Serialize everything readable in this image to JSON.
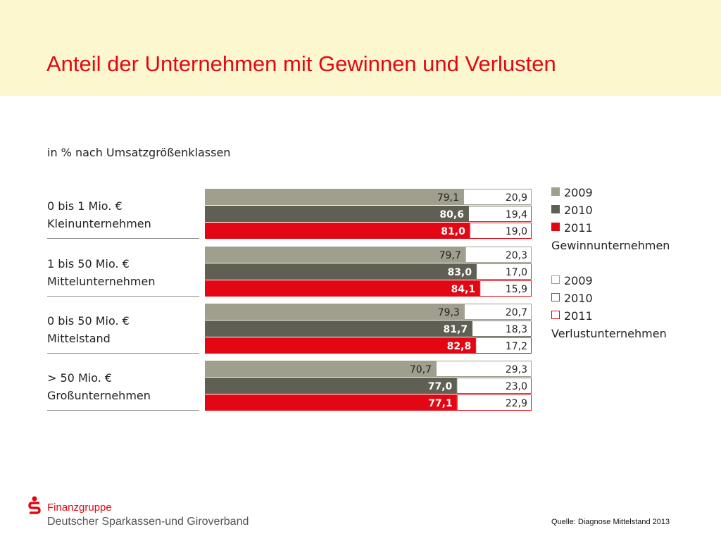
{
  "title": "Anteil der Unternehmen mit Gewinnen und Verlusten",
  "chart_data": {
    "type": "bar",
    "orientation": "horizontal",
    "stacked": true,
    "subtitle": "in % nach Umsatzgrößenklassen",
    "xlim": [
      0,
      100
    ],
    "categories": [
      [
        "0 bis 1 Mio. €",
        "Kleinunternehmen"
      ],
      [
        "1 bis 50 Mio. €",
        "Mittelunternehmen"
      ],
      [
        "0 bis 50 Mio. €",
        "Mittelstand"
      ],
      [
        "> 50 Mio. €",
        "Großunternehmen"
      ]
    ],
    "years": [
      "2009",
      "2010",
      "2011"
    ],
    "gewinn": [
      [
        "79,1",
        "80,6",
        "81,0"
      ],
      [
        "79,7",
        "83,0",
        "84,1"
      ],
      [
        "79,3",
        "81,7",
        "82,8"
      ],
      [
        "70,7",
        "77,0",
        "77,1"
      ]
    ],
    "verlust": [
      [
        "20,9",
        "19,4",
        "19,0"
      ],
      [
        "20,3",
        "17,0",
        "15,9"
      ],
      [
        "20,7",
        "18,3",
        "17,2"
      ],
      [
        "29,3",
        "23,0",
        "22,9"
      ]
    ],
    "colors": {
      "2009": "#a09f8d",
      "2010": "#5f5f53",
      "2011": "#e30613",
      "label_2009": "#222222",
      "label_on_dark": "#ffffff"
    },
    "legend": {
      "gewinn": {
        "items": [
          "2009",
          "2010",
          "2011"
        ],
        "caption": "Gewinnunternehmen"
      },
      "verlust": {
        "items": [
          "2009",
          "2010",
          "2011"
        ],
        "caption": "Verlustunternehmen"
      }
    }
  },
  "footer": {
    "brand_line1": "Finanzgruppe",
    "brand_line2": "Deutscher Sparkassen-und Giroverband",
    "source": "Quelle: Diagnose Mittelstand 2013"
  }
}
